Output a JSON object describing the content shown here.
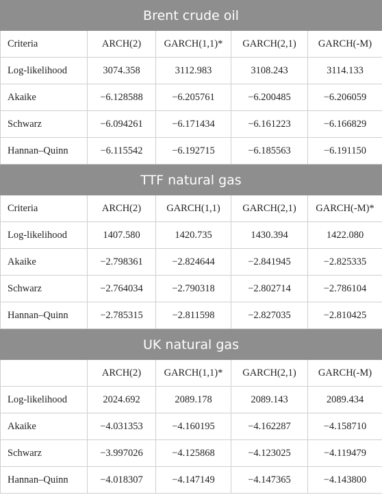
{
  "sections": [
    {
      "title": "Brent crude oil",
      "header": [
        "Criteria",
        "ARCH(2)",
        "GARCH(1,1)*",
        "GARCH(2,1)",
        "GARCH(-M)"
      ],
      "rows": [
        [
          "Log-likelihood",
          "3074.358",
          "3112.983",
          "3108.243",
          "3114.133"
        ],
        [
          "Akaike",
          "−6.128588",
          "−6.205761",
          "−6.200485",
          "−6.206059"
        ],
        [
          "Schwarz",
          "−6.094261",
          "−6.171434",
          "−6.161223",
          "−6.166829"
        ],
        [
          "Hannan–Quinn",
          "−6.115542",
          "−6.192715",
          "−6.185563",
          "−6.191150"
        ]
      ]
    },
    {
      "title": "TTF natural gas",
      "header": [
        "Criteria",
        "ARCH(2)",
        "GARCH(1,1)",
        "GARCH(2,1)",
        "GARCH(-M)*"
      ],
      "rows": [
        [
          "Log-likelihood",
          "1407.580",
          "1420.735",
          "1430.394",
          "1422.080"
        ],
        [
          "Akaike",
          "−2.798361",
          "−2.824644",
          "−2.841945",
          "−2.825335"
        ],
        [
          "Schwarz",
          "−2.764034",
          "−2.790318",
          "−2.802714",
          "−2.786104"
        ],
        [
          "Hannan–Quinn",
          "−2.785315",
          "−2.811598",
          "−2.827035",
          "−2.810425"
        ]
      ]
    },
    {
      "title": "UK natural gas",
      "header": [
        null,
        "ARCH(2)",
        "GARCH(1,1)*",
        "GARCH(2,1)",
        "GARCH(-M)"
      ],
      "rows": [
        [
          "Log-likelihood",
          "2024.692",
          "2089.178",
          "2089.143",
          "2089.434"
        ],
        [
          "Akaike",
          "−4.031353",
          "−4.160195",
          "−4.162287",
          "−4.158710"
        ],
        [
          "Schwarz",
          "−3.997026",
          "−4.125868",
          "−4.123025",
          "−4.119479"
        ],
        [
          "Hannan–Quinn",
          "−4.018307",
          "−4.147149",
          "−4.147365",
          "−4.143800"
        ]
      ]
    }
  ]
}
